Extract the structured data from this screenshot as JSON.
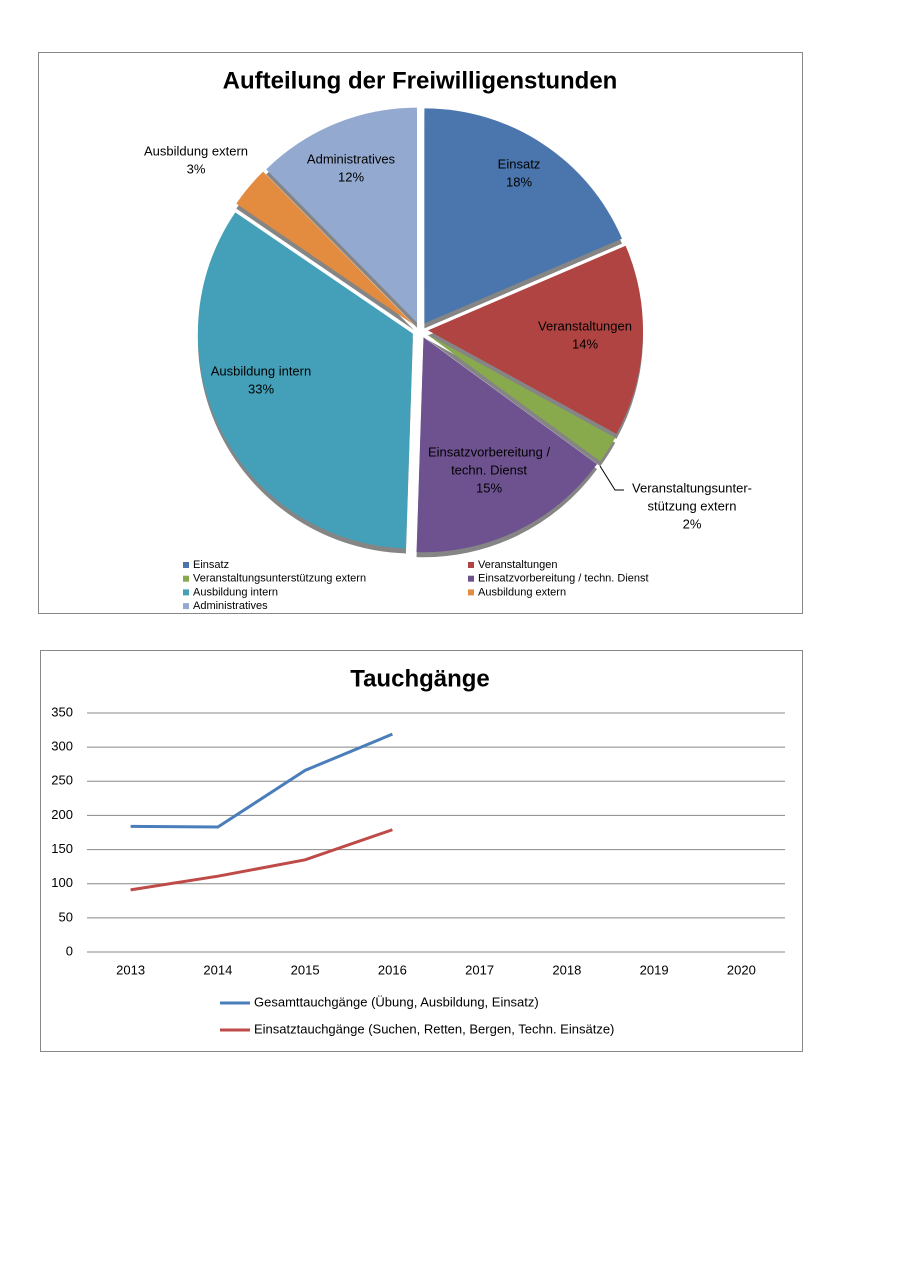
{
  "chart_data": [
    {
      "type": "pie",
      "title": "Aufteilung der Freiwilligenstunden",
      "categories": [
        "Einsatz",
        "Veranstaltungen",
        "Veranstaltungsunterstützung extern",
        "Einsatzvorbereitung / techn. Dienst",
        "Ausbildung intern",
        "Ausbildung extern",
        "Administratives"
      ],
      "values": [
        18,
        14,
        2,
        15,
        33,
        3,
        12
      ],
      "value_labels": [
        "18%",
        "14%",
        "2%",
        "15%",
        "33%",
        "3%",
        "12%"
      ],
      "slice_labels": [
        [
          "Einsatz"
        ],
        [
          "Veranstaltungen"
        ],
        [
          "Veranstaltungsunter-",
          "stützung extern"
        ],
        [
          "Einsatzvorbereitung /",
          "techn. Dienst"
        ],
        [
          "Ausbildung intern"
        ],
        [
          "Ausbildung extern"
        ],
        [
          "Administratives"
        ]
      ],
      "colors": [
        "#4a76ad",
        "#b04442",
        "#88a94c",
        "#6e5290",
        "#44a0b8",
        "#e38b3e",
        "#93a9d0"
      ],
      "legend": "bottom"
    },
    {
      "type": "line",
      "title": "Tauchgänge",
      "categories": [
        "2013",
        "2014",
        "2015",
        "2016",
        "2017",
        "2018",
        "2019",
        "2020"
      ],
      "series": [
        {
          "name": "Gesamttauchgänge (Übung, Ausbildung, Einsatz)",
          "color": "#4a7ebb",
          "values": [
            184,
            183,
            266,
            319,
            null,
            null,
            null,
            null
          ]
        },
        {
          "name": "Einsatztauchgänge (Suchen, Retten, Bergen, Techn. Einsätze)",
          "color": "#be4b48",
          "values": [
            91,
            111,
            135,
            179,
            null,
            null,
            null,
            null
          ]
        }
      ],
      "ylim": [
        0,
        350
      ],
      "yticks": [
        0,
        50,
        100,
        150,
        200,
        250,
        300,
        350
      ],
      "grid": true,
      "legend": "bottom"
    }
  ]
}
